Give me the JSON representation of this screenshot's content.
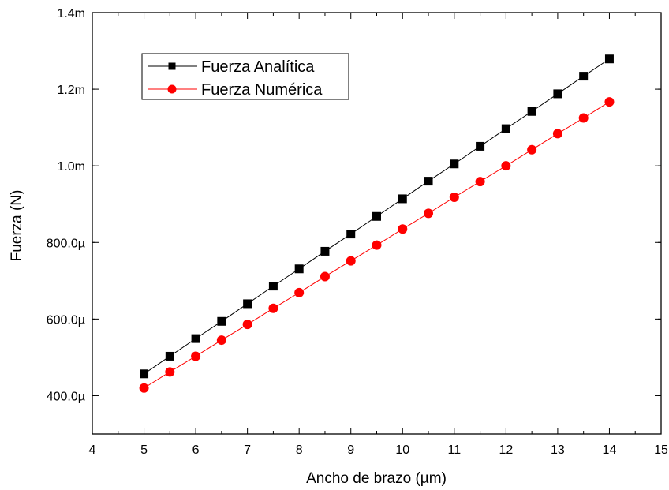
{
  "chart_data": {
    "type": "line",
    "title": "",
    "xlabel": "Ancho de brazo (µm)",
    "ylabel": "Fuerza (N)",
    "xlim": [
      4,
      15
    ],
    "ylim": [
      0.0003,
      0.0014
    ],
    "xticks": [
      4,
      5,
      6,
      7,
      8,
      9,
      10,
      11,
      12,
      13,
      14,
      15
    ],
    "xtick_labels": [
      "4",
      "5",
      "6",
      "7",
      "8",
      "9",
      "10",
      "11",
      "12",
      "13",
      "14",
      "15"
    ],
    "yticks": [
      0.0004,
      0.0006,
      0.0008,
      0.001,
      0.0012,
      0.0014
    ],
    "ytick_labels": [
      "400.0µ",
      "600.0µ",
      "800.0µ",
      "1.0m",
      "1.2m",
      "1.4m"
    ],
    "grid": false,
    "legend_position": "top-left",
    "x": [
      5,
      5.5,
      6,
      6.5,
      7,
      7.5,
      8,
      8.5,
      9,
      9.5,
      10,
      10.5,
      11,
      11.5,
      12,
      12.5,
      13,
      13.5,
      14
    ],
    "series": [
      {
        "name": "Fuerza Analítica",
        "color": "#000000",
        "marker": "square",
        "values": [
          0.000457,
          0.000503,
          0.000549,
          0.000594,
          0.00064,
          0.000686,
          0.000731,
          0.000777,
          0.000822,
          0.000868,
          0.000914,
          0.00096,
          0.001005,
          0.001051,
          0.001097,
          0.001142,
          0.001188,
          0.001234,
          0.001279
        ]
      },
      {
        "name": "Fuerza Numérica",
        "color": "#ff0000",
        "marker": "circle",
        "values": [
          0.00042,
          0.000462,
          0.000503,
          0.000545,
          0.000586,
          0.000628,
          0.000669,
          0.000711,
          0.000752,
          0.000793,
          0.000835,
          0.000876,
          0.000918,
          0.000959,
          0.001,
          0.001042,
          0.001084,
          0.001125,
          0.001167
        ]
      }
    ]
  }
}
